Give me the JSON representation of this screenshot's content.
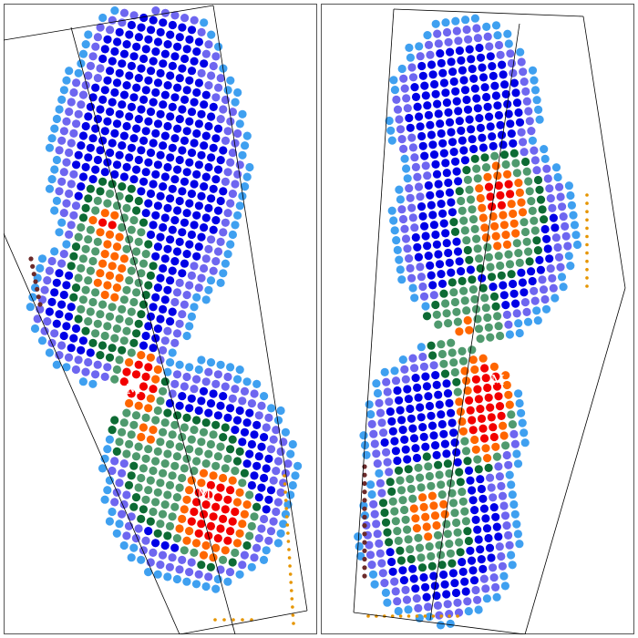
{
  "colors": {
    "red": "#f20000",
    "orange": "#ff6600",
    "light_green": "#4f9a6e",
    "dark_green": "#0d6b34",
    "blue": "#0000e6",
    "violet": "#6e66f0",
    "light_blue": "#3fa0f0",
    "brown": "#6b2a2a",
    "gold": "#e69500",
    "frame": "#000000",
    "border": "#555555",
    "background": "#ffffff"
  },
  "panels": [
    {
      "id": "left-foot",
      "markers": [
        "M",
        "M"
      ]
    },
    {
      "id": "right-foot",
      "markers": [
        "M"
      ]
    }
  ]
}
